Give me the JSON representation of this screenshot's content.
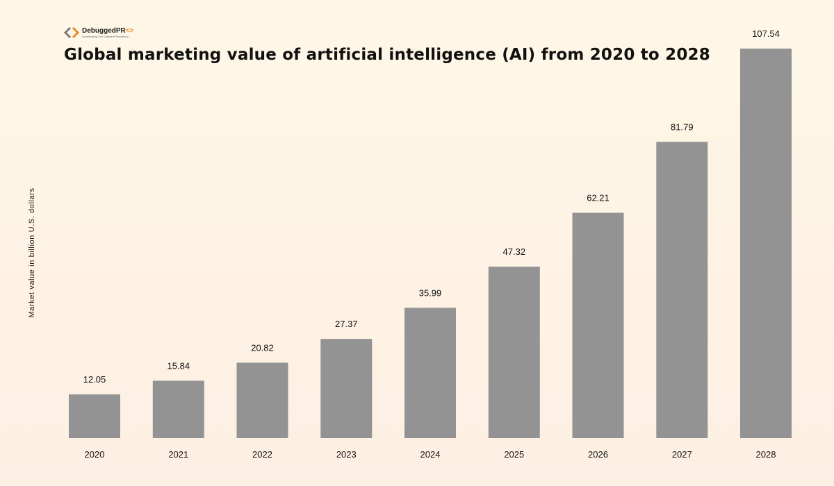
{
  "logo": {
    "name": "DebuggedPR",
    "symbol": "<>",
    "tagline": "Accelerating The Software Revolution"
  },
  "colors": {
    "bar": "#939393",
    "accent": "#e98a2c",
    "logo_gray": "#7a7a7a"
  },
  "chart_data": {
    "type": "bar",
    "title": "Global marketing value of artificial intelligence (AI) from 2020 to 2028",
    "xlabel": "",
    "ylabel": "Market value in billion U.S. dollars",
    "categories": [
      "2020",
      "2021",
      "2022",
      "2023",
      "2024",
      "2025",
      "2026",
      "2027",
      "2028"
    ],
    "values": [
      12.05,
      15.84,
      20.82,
      27.37,
      35.99,
      47.32,
      62.21,
      81.79,
      107.54
    ],
    "value_labels": [
      "12.05",
      "15.84",
      "20.82",
      "27.37",
      "35.99",
      "47.32",
      "62.21",
      "81.79",
      "107.54"
    ],
    "ylim": [
      0,
      120
    ],
    "grid": false,
    "legend": "none"
  }
}
